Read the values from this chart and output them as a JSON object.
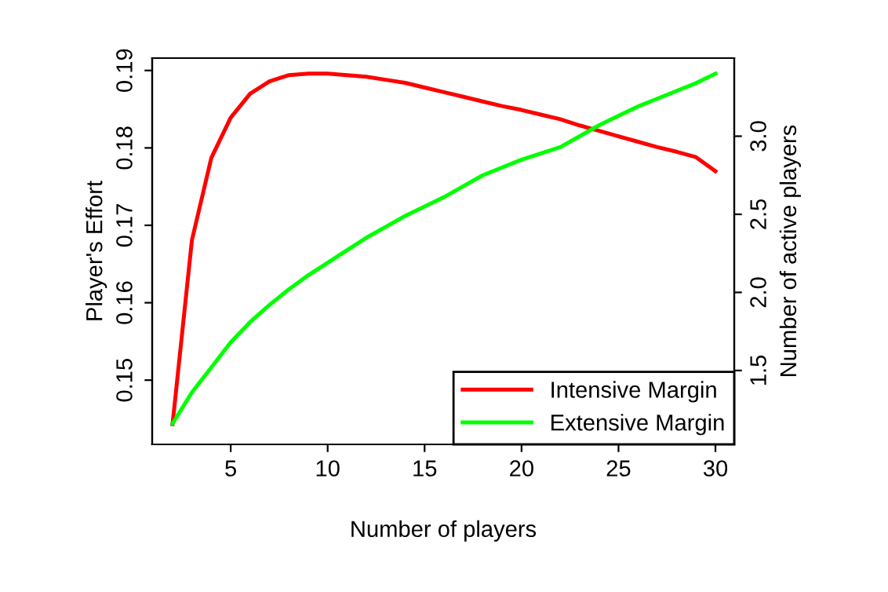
{
  "chart_data": {
    "type": "line",
    "xlabel": "Number of players",
    "ylabel": "Player's Effort",
    "y2label": "Number of active players",
    "x": [
      2,
      3,
      4,
      5,
      6,
      7,
      8,
      9,
      10,
      11,
      12,
      13,
      14,
      15,
      16,
      17,
      18,
      19,
      20,
      21,
      22,
      23,
      24,
      25,
      26,
      27,
      28,
      29,
      30
    ],
    "series": [
      {
        "name": "Intensive Margin",
        "color": "#ff0000",
        "values": [
          0.1443,
          0.1681,
          0.1787,
          0.1839,
          0.187,
          0.1886,
          0.1894,
          0.1896,
          0.1896,
          0.1894,
          0.1892,
          0.1888,
          0.1884,
          0.1878,
          0.1872,
          0.1866,
          0.186,
          0.1854,
          0.1849,
          0.1843,
          0.1837,
          0.1829,
          0.1822,
          0.1815,
          0.1808,
          0.1801,
          0.1795,
          0.1788,
          0.177
        ]
      },
      {
        "name": "Extensive Margin",
        "color": "#00ff00",
        "axis": "y2",
        "values": [
          1.16,
          1.36,
          1.52,
          1.68,
          1.81,
          1.92,
          2.02,
          2.11,
          2.19,
          2.27,
          2.35,
          2.42,
          2.49,
          2.55,
          2.61,
          2.68,
          2.75,
          2.8,
          2.85,
          2.89,
          2.93,
          3.0,
          3.07,
          3.13,
          3.19,
          3.24,
          3.29,
          3.34,
          3.4
        ]
      }
    ],
    "xlim": [
      0.95,
      30.97
    ],
    "xticks": [
      5,
      10,
      15,
      20,
      25,
      30
    ],
    "ylim": [
      0.1417,
      0.1916
    ],
    "yticks": [
      0.15,
      0.16,
      0.17,
      0.18,
      0.19
    ],
    "y2lim": [
      1.027,
      3.5
    ],
    "y2ticks": [
      1.5,
      {
        "value": 2,
        "label": "2.0"
      },
      2.5,
      {
        "value": 3,
        "label": "3.0"
      }
    ],
    "legend": "bottom right",
    "grid": false
  }
}
